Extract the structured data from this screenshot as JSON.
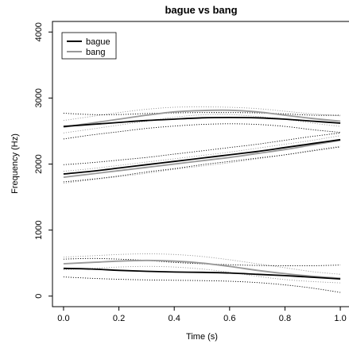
{
  "chart_data": {
    "type": "line",
    "title": "bague vs bang",
    "xlabel": "Time (s)",
    "ylabel": "Frequency (Hz)",
    "xlim": [
      -0.04,
      1.04
    ],
    "ylim": [
      -160,
      4160
    ],
    "xticks": [
      0.0,
      0.2,
      0.4,
      0.6,
      0.8,
      1.0
    ],
    "xtick_labels": [
      "0.0",
      "0.2",
      "0.4",
      "0.6",
      "0.8",
      "1.0"
    ],
    "yticks": [
      0,
      1000,
      2000,
      3000,
      4000
    ],
    "ytick_labels": [
      "0",
      "1000",
      "2000",
      "3000",
      "4000"
    ],
    "grid": false,
    "legend_position": "top-left",
    "x": [
      0.0,
      0.1,
      0.2,
      0.3,
      0.4,
      0.5,
      0.6,
      0.7,
      0.8,
      0.9,
      1.0
    ],
    "series": [
      {
        "name": "bague",
        "color": "#000000",
        "formants": [
          {
            "mean": [
              2570,
              2600,
              2630,
              2660,
              2680,
              2700,
              2705,
              2700,
              2680,
              2650,
              2620
            ],
            "upper": [
              2770,
              2750,
              2750,
              2765,
              2775,
              2780,
              2780,
              2775,
              2760,
              2740,
              2740
            ],
            "lower": [
              2380,
              2440,
              2490,
              2540,
              2575,
              2600,
              2610,
              2600,
              2570,
              2520,
              2480
            ]
          },
          {
            "mean": [
              1850,
              1890,
              1940,
              1990,
              2040,
              2090,
              2140,
              2190,
              2250,
              2310,
              2370
            ],
            "upper": [
              1990,
              2020,
              2060,
              2100,
              2150,
              2200,
              2250,
              2300,
              2360,
              2420,
              2470
            ],
            "lower": [
              1730,
              1770,
              1820,
              1880,
              1930,
              1990,
              2040,
              2090,
              2140,
              2200,
              2260
            ]
          },
          {
            "mean": [
              420,
              410,
              390,
              375,
              365,
              360,
              350,
              330,
              310,
              285,
              260
            ],
            "upper": [
              560,
              570,
              560,
              540,
              510,
              490,
              475,
              465,
              460,
              460,
              470
            ],
            "lower": [
              290,
              270,
              255,
              245,
              240,
              235,
              225,
              205,
              170,
              120,
              55
            ]
          }
        ]
      },
      {
        "name": "bang",
        "color": "#999999",
        "formants": [
          {
            "mean": [
              2560,
              2620,
              2680,
              2740,
              2790,
              2810,
              2815,
              2790,
              2740,
              2690,
              2650
            ],
            "upper": [
              2660,
              2720,
              2780,
              2830,
              2860,
              2865,
              2860,
              2840,
              2800,
              2760,
              2730
            ],
            "lower": [
              2470,
              2530,
              2590,
              2650,
              2710,
              2745,
              2750,
              2720,
              2680,
              2620,
              2570
            ]
          },
          {
            "mean": [
              1800,
              1850,
              1900,
              1950,
              2000,
              2050,
              2100,
              2160,
              2220,
              2290,
              2360
            ],
            "upper": [
              1890,
              1930,
              1980,
              2030,
              2080,
              2130,
              2180,
              2240,
              2300,
              2360,
              2430
            ],
            "lower": [
              1710,
              1760,
              1810,
              1860,
              1920,
              1970,
              2020,
              2080,
              2140,
              2210,
              2270
            ]
          },
          {
            "mean": [
              490,
              510,
              530,
              540,
              530,
              500,
              450,
              390,
              340,
              300,
              270
            ],
            "upper": [
              590,
              610,
              630,
              640,
              630,
              600,
              550,
              490,
              430,
              370,
              330
            ],
            "lower": [
              400,
              420,
              440,
              450,
              440,
              410,
              360,
              300,
              250,
              220,
              200
            ]
          }
        ]
      }
    ]
  }
}
